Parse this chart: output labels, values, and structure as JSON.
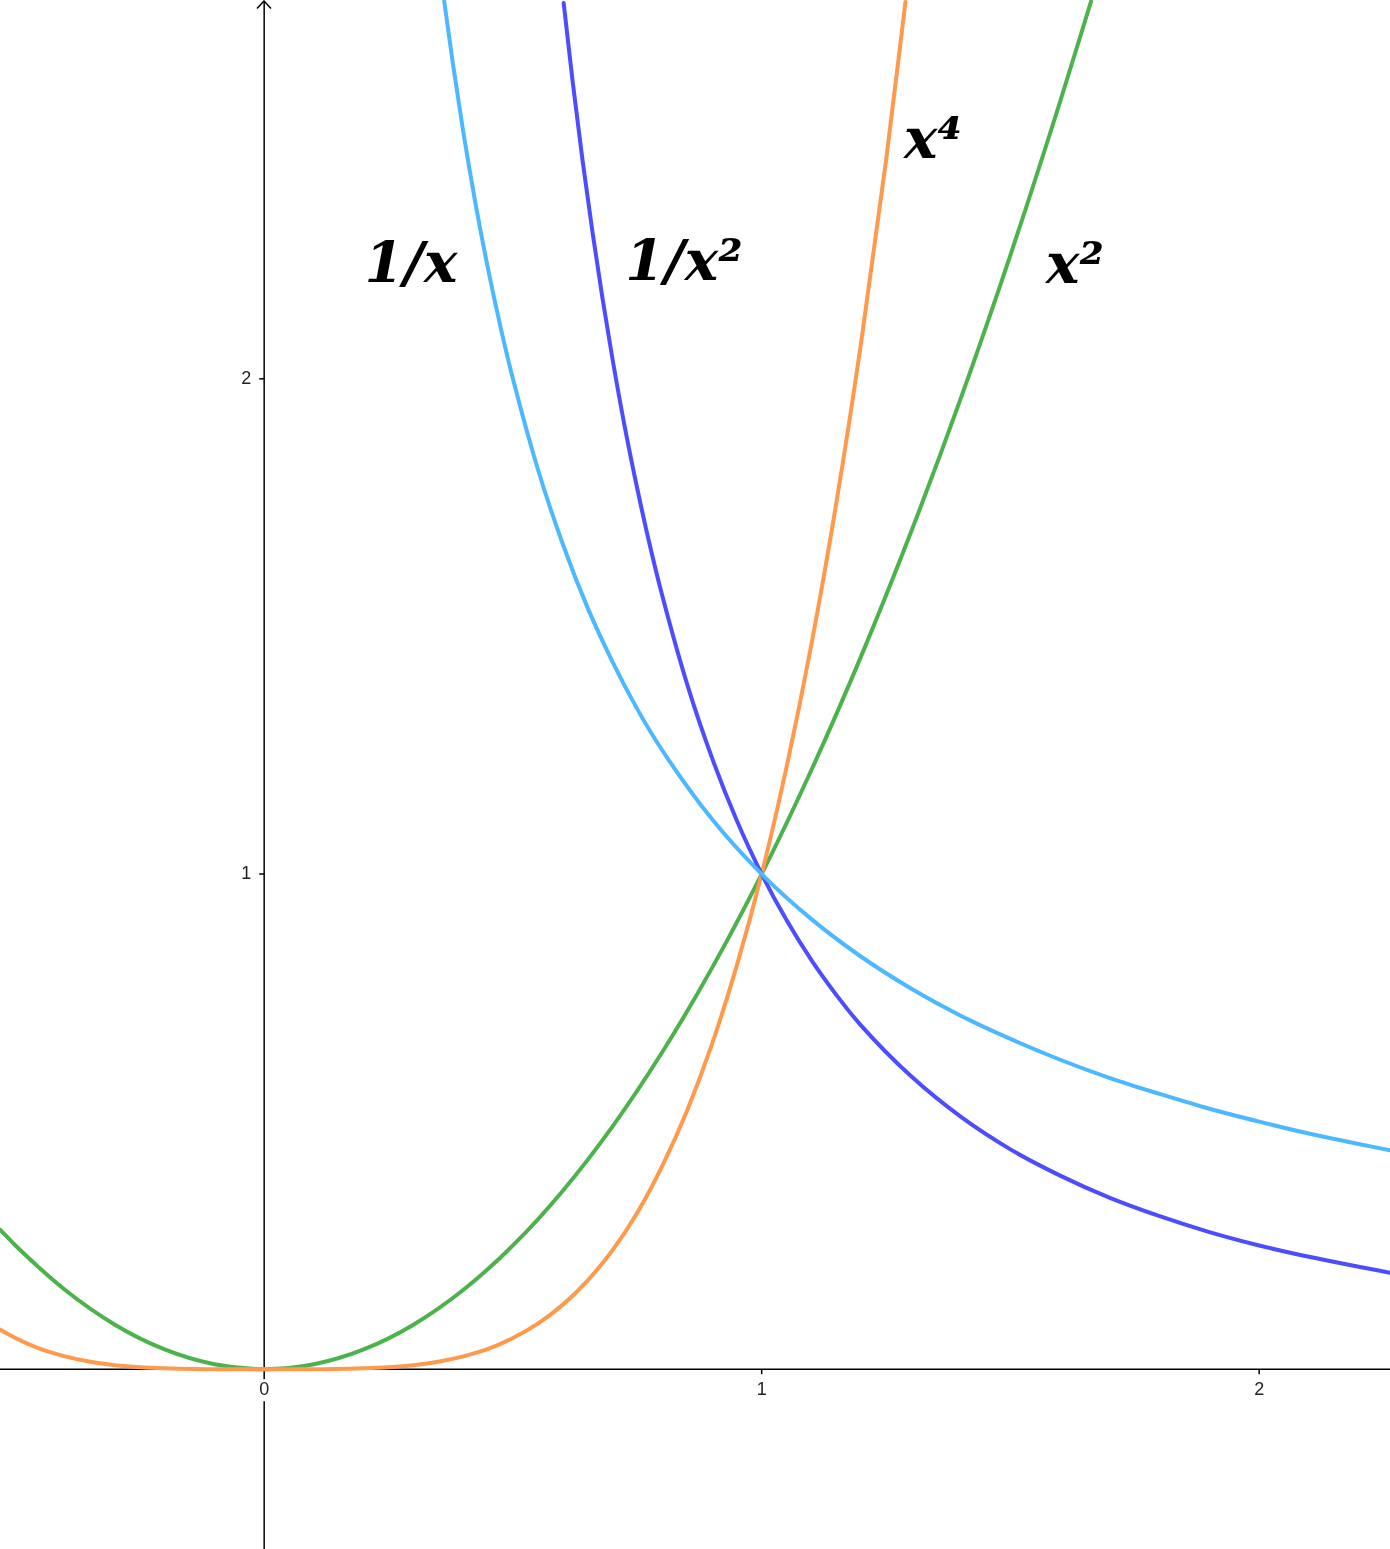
{
  "chart_data": {
    "type": "line",
    "xlim": [
      -0.531,
      2.263
    ],
    "ylim": [
      -0.363,
      2.765
    ],
    "xticks": [
      0,
      1,
      2
    ],
    "yticks": [
      1,
      2
    ],
    "marker": "none",
    "line_style": "solid",
    "series": [
      {
        "name": "1/x",
        "color": "#4cb8ff",
        "x": [
          0.362,
          0.38,
          0.4,
          0.425,
          0.45,
          0.475,
          0.5,
          0.55,
          0.6,
          0.65,
          0.7,
          0.75,
          0.8,
          0.9,
          1,
          1.1,
          1.2,
          1.3,
          1.4,
          1.5,
          1.6,
          1.7,
          1.8,
          1.9,
          2,
          2.1,
          2.2,
          2.263
        ],
        "values": [
          2.762,
          2.632,
          2.5,
          2.353,
          2.222,
          2.105,
          2,
          1.818,
          1.667,
          1.538,
          1.429,
          1.333,
          1.25,
          1.111,
          1,
          0.909,
          0.833,
          0.769,
          0.714,
          0.667,
          0.625,
          0.588,
          0.556,
          0.526,
          0.5,
          0.476,
          0.455,
          0.442
        ]
      },
      {
        "name": "1/x²",
        "color": "#4d4dff",
        "x": [
          0.602,
          0.62,
          0.64,
          0.66,
          0.68,
          0.7,
          0.725,
          0.75,
          0.775,
          0.8,
          0.85,
          0.9,
          0.95,
          1,
          1.05,
          1.1,
          1.15,
          1.2,
          1.3,
          1.4,
          1.5,
          1.6,
          1.7,
          1.8,
          1.9,
          2,
          2.1,
          2.2,
          2.263
        ],
        "values": [
          2.759,
          2.601,
          2.441,
          2.296,
          2.163,
          2.041,
          1.902,
          1.778,
          1.665,
          1.563,
          1.384,
          1.235,
          1.108,
          1,
          0.907,
          0.826,
          0.756,
          0.694,
          0.592,
          0.51,
          0.444,
          0.391,
          0.346,
          0.309,
          0.277,
          0.25,
          0.227,
          0.207,
          0.195
        ]
      },
      {
        "name": "x⁴",
        "color": "#ff9a4d",
        "x": [
          -0.531,
          -0.5,
          -0.45,
          -0.4,
          -0.35,
          -0.3,
          -0.25,
          -0.2,
          -0.1,
          0,
          0.1,
          0.2,
          0.25,
          0.3,
          0.35,
          0.4,
          0.45,
          0.5,
          0.55,
          0.6,
          0.65,
          0.7,
          0.75,
          0.8,
          0.85,
          0.9,
          0.95,
          1,
          1.05,
          1.1,
          1.15,
          1.2,
          1.25,
          1.289
        ],
        "values": [
          0.08,
          0.063,
          0.041,
          0.026,
          0.015,
          0.008,
          0.004,
          0.002,
          0,
          0,
          0,
          0.002,
          0.004,
          0.008,
          0.015,
          0.026,
          0.041,
          0.063,
          0.092,
          0.13,
          0.179,
          0.24,
          0.316,
          0.41,
          0.522,
          0.656,
          0.815,
          1,
          1.216,
          1.464,
          1.749,
          2.074,
          2.441,
          2.761
        ]
      },
      {
        "name": "x²",
        "color": "#4cb34c",
        "x": [
          -0.531,
          -0.5,
          -0.4,
          -0.3,
          -0.2,
          -0.1,
          0,
          0.1,
          0.2,
          0.3,
          0.4,
          0.5,
          0.6,
          0.7,
          0.8,
          0.9,
          1,
          1.1,
          1.2,
          1.3,
          1.4,
          1.5,
          1.6,
          1.662
        ],
        "values": [
          0.282,
          0.25,
          0.16,
          0.09,
          0.04,
          0.01,
          0,
          0.01,
          0.04,
          0.09,
          0.16,
          0.25,
          0.36,
          0.49,
          0.64,
          0.81,
          1,
          1.21,
          1.44,
          1.69,
          1.96,
          2.25,
          2.56,
          2.762
        ]
      }
    ]
  }
}
